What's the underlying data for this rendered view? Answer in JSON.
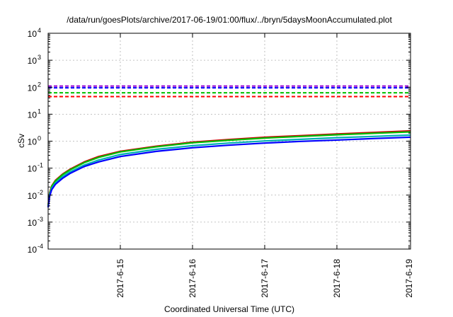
{
  "chart_data": {
    "type": "line",
    "title": "/data/run/goesPlots/archive/2017-06-19/01:00/flux/../bryn/5daysMoonAccumulated.plot",
    "xlabel": "Coordinated Universal Time (UTC)",
    "ylabel": "cSv",
    "yscale": "log",
    "ylim": [
      0.0001,
      10000
    ],
    "xlim": [
      0,
      5.02
    ],
    "grid": true,
    "y_ticks": [
      {
        "value": 0.0001,
        "base": "10",
        "exp": "-4"
      },
      {
        "value": 0.001,
        "base": "10",
        "exp": "-3"
      },
      {
        "value": 0.01,
        "base": "10",
        "exp": "-2"
      },
      {
        "value": 0.1,
        "base": "10",
        "exp": "-1"
      },
      {
        "value": 1,
        "base": "10",
        "exp": "0"
      },
      {
        "value": 10,
        "base": "10",
        "exp": "1"
      },
      {
        "value": 100,
        "base": "10",
        "exp": "2"
      },
      {
        "value": 1000,
        "base": "10",
        "exp": "3"
      },
      {
        "value": 10000,
        "base": "10",
        "exp": "4"
      }
    ],
    "x_ticks": [
      {
        "value": 1,
        "label": "2017-6-15"
      },
      {
        "value": 2,
        "label": "2017-6-16"
      },
      {
        "value": 3,
        "label": "2017-6-17"
      },
      {
        "value": 4,
        "label": "2017-6-18"
      },
      {
        "value": 5,
        "label": "2017-6-19"
      }
    ],
    "reference_lines": [
      {
        "value": 110,
        "color": "#9400d3"
      },
      {
        "value": 95,
        "color": "#0000ff"
      },
      {
        "value": 62,
        "color": "#00c000"
      },
      {
        "value": 45,
        "color": "#ff0000"
      }
    ],
    "series": [
      {
        "color": "#cc0000",
        "x": [
          0,
          0.02,
          0.05,
          0.1,
          0.2,
          0.3,
          0.5,
          0.7,
          1.0,
          1.5,
          2.0,
          2.5,
          3.0,
          3.5,
          4.0,
          4.5,
          5.02
        ],
        "y": [
          0.004,
          0.012,
          0.022,
          0.035,
          0.06,
          0.09,
          0.17,
          0.27,
          0.42,
          0.65,
          0.92,
          1.15,
          1.4,
          1.6,
          1.85,
          2.1,
          2.4
        ]
      },
      {
        "color": "#00c000",
        "x": [
          0,
          0.02,
          0.05,
          0.1,
          0.2,
          0.3,
          0.5,
          0.7,
          1.0,
          1.5,
          2.0,
          2.5,
          3.0,
          3.5,
          4.0,
          4.5,
          5.02
        ],
        "y": [
          0.004,
          0.011,
          0.021,
          0.033,
          0.057,
          0.085,
          0.16,
          0.25,
          0.4,
          0.62,
          0.87,
          1.08,
          1.3,
          1.5,
          1.72,
          1.95,
          2.2
        ]
      },
      {
        "color": "#00b0b0",
        "x": [
          0,
          0.02,
          0.05,
          0.1,
          0.2,
          0.3,
          0.5,
          0.7,
          1.0,
          1.5,
          2.0,
          2.5,
          3.0,
          3.5,
          4.0,
          4.5,
          5.02
        ],
        "y": [
          0.0038,
          0.01,
          0.018,
          0.028,
          0.048,
          0.072,
          0.13,
          0.2,
          0.32,
          0.5,
          0.68,
          0.85,
          1.02,
          1.17,
          1.34,
          1.5,
          1.68
        ]
      },
      {
        "color": "#0000ff",
        "x": [
          0,
          0.02,
          0.05,
          0.1,
          0.2,
          0.3,
          0.5,
          0.7,
          1.0,
          1.5,
          2.0,
          2.5,
          3.0,
          3.5,
          4.0,
          4.5,
          5.02
        ],
        "y": [
          0.0035,
          0.009,
          0.016,
          0.025,
          0.042,
          0.063,
          0.115,
          0.17,
          0.27,
          0.42,
          0.57,
          0.71,
          0.85,
          0.98,
          1.1,
          1.25,
          1.4
        ]
      }
    ]
  }
}
